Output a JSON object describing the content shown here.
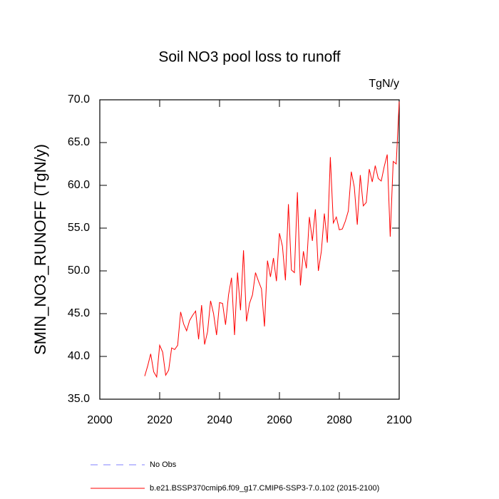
{
  "chart_data": {
    "type": "line",
    "title": "Soil NO3 pool loss to runoff",
    "units": "TgN/y",
    "ylabel": "SMIN_NO3_RUNOFF  (TgN/y)",
    "x": [
      2015,
      2016,
      2017,
      2018,
      2019,
      2020,
      2021,
      2022,
      2023,
      2024,
      2025,
      2026,
      2027,
      2028,
      2029,
      2030,
      2031,
      2032,
      2033,
      2034,
      2035,
      2036,
      2037,
      2038,
      2039,
      2040,
      2041,
      2042,
      2043,
      2044,
      2045,
      2046,
      2047,
      2048,
      2049,
      2050,
      2051,
      2052,
      2053,
      2054,
      2055,
      2056,
      2057,
      2058,
      2059,
      2060,
      2061,
      2062,
      2063,
      2064,
      2065,
      2066,
      2067,
      2068,
      2069,
      2070,
      2071,
      2072,
      2073,
      2074,
      2075,
      2076,
      2077,
      2078,
      2079,
      2080,
      2081,
      2082,
      2083,
      2084,
      2085,
      2086,
      2087,
      2088,
      2089,
      2090,
      2091,
      2092,
      2093,
      2094,
      2095,
      2096,
      2097,
      2098,
      2099,
      2100
    ],
    "series": [
      {
        "name": "b.e21.BSSP370cmip6.f09_g17.CMIP6-SSP3-7.0.102 (2015-2100)",
        "color": "#ff0000",
        "values": [
          37.7,
          38.9,
          40.3,
          38.2,
          37.6,
          41.3,
          40.5,
          37.8,
          38.4,
          41.0,
          40.8,
          41.3,
          45.2,
          43.8,
          43.0,
          44.2,
          44.8,
          45.3,
          42.0,
          46.0,
          41.4,
          42.9,
          46.5,
          45.0,
          42.5,
          46.3,
          46.2,
          43.7,
          47.2,
          49.2,
          42.5,
          49.8,
          45.4,
          52.4,
          44.1,
          46.2,
          47.2,
          49.8,
          48.8,
          47.9,
          43.5,
          51.2,
          49.3,
          51.5,
          48.8,
          54.4,
          52.9,
          48.9,
          57.8,
          50.1,
          49.8,
          59.2,
          48.3,
          52.3,
          50.3,
          56.3,
          53.5,
          57.2,
          50.0,
          52.3,
          56.7,
          53.3,
          63.3,
          55.6,
          56.3,
          54.8,
          54.9,
          55.8,
          57.0,
          61.6,
          59.8,
          55.4,
          61.2,
          57.6,
          58.0,
          61.9,
          60.4,
          62.3,
          60.8,
          60.5,
          62.2,
          63.6,
          54.0,
          62.8,
          62.5,
          69.8
        ]
      }
    ],
    "reference": {
      "name": "No Obs",
      "color": "#8080ff",
      "dashed": true
    },
    "xlim": [
      2000,
      2100
    ],
    "xticks": [
      2000,
      2020,
      2040,
      2060,
      2080,
      2100
    ],
    "ylim": [
      35,
      70
    ],
    "yticks": [
      {
        "value": 35,
        "label": "35.0"
      },
      {
        "value": 40,
        "label": "40.0"
      },
      {
        "value": 45,
        "label": "45.0"
      },
      {
        "value": 50,
        "label": "50.0"
      },
      {
        "value": 55,
        "label": "55.0"
      },
      {
        "value": 60,
        "label": "60.0"
      },
      {
        "value": 65,
        "label": "65.0"
      },
      {
        "value": 70,
        "label": "70.0"
      }
    ]
  }
}
